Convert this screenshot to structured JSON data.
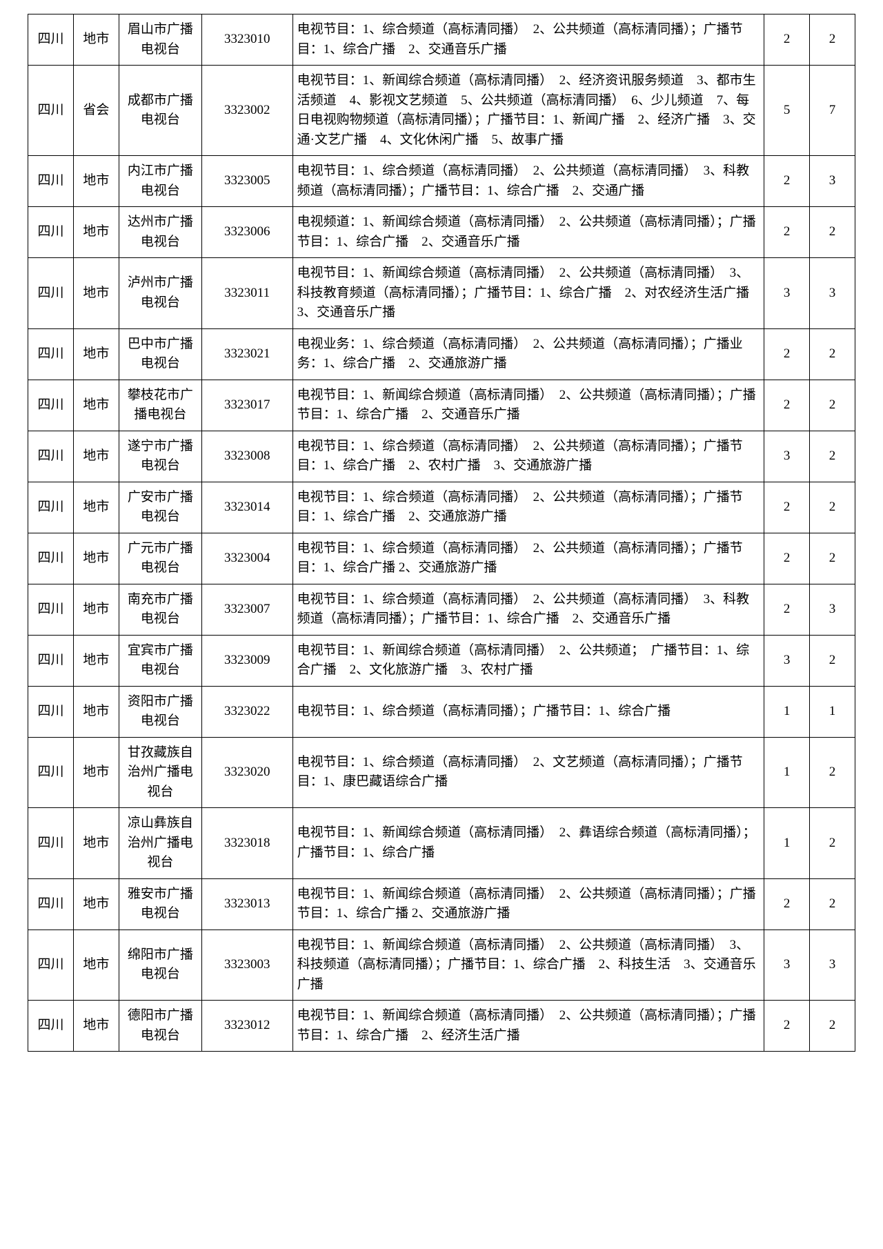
{
  "table": {
    "border_color": "#000000",
    "background_color": "#ffffff",
    "text_color": "#000000",
    "font_size": 19,
    "font_family": "SimSun",
    "columns": [
      {
        "key": "province",
        "width": "5.5%",
        "align": "center"
      },
      {
        "key": "level",
        "width": "5.5%",
        "align": "center"
      },
      {
        "key": "station",
        "width": "10%",
        "align": "center"
      },
      {
        "key": "code",
        "width": "11%",
        "align": "center"
      },
      {
        "key": "desc",
        "width": "57%",
        "align": "left"
      },
      {
        "key": "num1",
        "width": "5.5%",
        "align": "center"
      },
      {
        "key": "num2",
        "width": "5.5%",
        "align": "center"
      }
    ],
    "rows": [
      {
        "province": "四川",
        "level": "地市",
        "station": "眉山市广播电视台",
        "code": "3323010",
        "desc": "电视节目：1、综合频道（高标清同播）　2、公共频道（高标清同播）；广播节目：1、综合广播　2、交通音乐广播",
        "num1": "2",
        "num2": "2"
      },
      {
        "province": "四川",
        "level": "省会",
        "station": "成都市广播电视台",
        "code": "3323002",
        "desc": "电视节目：1、新闻综合频道（高标清同播）　2、经济资讯服务频道　3、都市生活频道　4、影视文艺频道　5、公共频道（高标清同播）　6、少儿频道　7、每日电视购物频道（高标清同播）；广播节目：1、新闻广播　2、经济广播　3、交通·文艺广播　4、文化休闲广播　5、故事广播",
        "num1": "5",
        "num2": "7"
      },
      {
        "province": "四川",
        "level": "地市",
        "station": "内江市广播电视台",
        "code": "3323005",
        "desc": "电视节目：1、综合频道（高标清同播）　2、公共频道（高标清同播）　3、科教频道（高标清同播）；广播节目：1、综合广播　2、交通广播",
        "num1": "2",
        "num2": "3"
      },
      {
        "province": "四川",
        "level": "地市",
        "station": "达州市广播电视台",
        "code": "3323006",
        "desc": "电视频道：1、新闻综合频道（高标清同播）　2、公共频道（高标清同播）；广播节目：1、综合广播　2、交通音乐广播",
        "num1": "2",
        "num2": "2"
      },
      {
        "province": "四川",
        "level": "地市",
        "station": "泸州市广播电视台",
        "code": "3323011",
        "desc": "电视节目：1、新闻综合频道（高标清同播）　2、公共频道（高标清同播）　3、科技教育频道（高标清同播）；广播节目：1、综合广播　2、对农经济生活广播　3、交通音乐广播",
        "num1": "3",
        "num2": "3"
      },
      {
        "province": "四川",
        "level": "地市",
        "station": "巴中市广播电视台",
        "code": "3323021",
        "desc": "电视业务：1、综合频道（高标清同播）　2、公共频道（高标清同播）；广播业务：1、综合广播　2、交通旅游广播",
        "num1": "2",
        "num2": "2"
      },
      {
        "province": "四川",
        "level": "地市",
        "station": "攀枝花市广播电视台",
        "code": "3323017",
        "desc": "电视节目：1、新闻综合频道（高标清同播）　2、公共频道（高标清同播）；广播节目：1、综合广播　2、交通音乐广播",
        "num1": "2",
        "num2": "2"
      },
      {
        "province": "四川",
        "level": "地市",
        "station": "遂宁市广播电视台",
        "code": "3323008",
        "desc": "电视节目：1、综合频道（高标清同播）　2、公共频道（高标清同播）；广播节目：1、综合广播　2、农村广播　3、交通旅游广播",
        "num1": "3",
        "num2": "2"
      },
      {
        "province": "四川",
        "level": "地市",
        "station": "广安市广播电视台",
        "code": "3323014",
        "desc": "电视节目：1、综合频道（高标清同播）　2、公共频道（高标清同播）；广播节目：1、综合广播　2、交通旅游广播",
        "num1": "2",
        "num2": "2"
      },
      {
        "province": "四川",
        "level": "地市",
        "station": "广元市广播电视台",
        "code": "3323004",
        "desc": "电视节目：1、综合频道（高标清同播）　2、公共频道（高标清同播）；广播节目：1、综合广播 2、交通旅游广播",
        "num1": "2",
        "num2": "2"
      },
      {
        "province": "四川",
        "level": "地市",
        "station": "南充市广播电视台",
        "code": "3323007",
        "desc": "电视节目：1、综合频道（高标清同播）　2、公共频道（高标清同播）　3、科教频道（高标清同播）；广播节目：1、综合广播　2、交通音乐广播",
        "num1": "2",
        "num2": "3"
      },
      {
        "province": "四川",
        "level": "地市",
        "station": "宜宾市广播电视台",
        "code": "3323009",
        "desc": "电视节目：1、新闻综合频道（高标清同播）　2、公共频道；　广播节目：1、综合广播　2、文化旅游广播　3、农村广播",
        "num1": "3",
        "num2": "2"
      },
      {
        "province": "四川",
        "level": "地市",
        "station": "资阳市广播电视台",
        "code": "3323022",
        "desc": "电视节目：1、综合频道（高标清同播）；广播节目：1、综合广播",
        "num1": "1",
        "num2": "1"
      },
      {
        "province": "四川",
        "level": "地市",
        "station": "甘孜藏族自治州广播电视台",
        "code": "3323020",
        "desc": "电视节目：1、综合频道（高标清同播）　2、文艺频道（高标清同播）；广播节目：1、康巴藏语综合广播",
        "num1": "1",
        "num2": "2"
      },
      {
        "province": "四川",
        "level": "地市",
        "station": "凉山彝族自治州广播电视台",
        "code": "3323018",
        "desc": "电视节目：1、新闻综合频道（高标清同播）　2、彝语综合频道（高标清同播）；广播节目：1、综合广播",
        "num1": "1",
        "num2": "2"
      },
      {
        "province": "四川",
        "level": "地市",
        "station": "雅安市广播电视台",
        "code": "3323013",
        "desc": "电视节目：1、新闻综合频道（高标清同播）　2、公共频道（高标清同播）；广播节目：1、综合广播 2、交通旅游广播",
        "num1": "2",
        "num2": "2"
      },
      {
        "province": "四川",
        "level": "地市",
        "station": "绵阳市广播电视台",
        "code": "3323003",
        "desc": "电视节目：1、新闻综合频道（高标清同播）　2、公共频道（高标清同播）　3、科技频道（高标清同播）；广播节目：1、综合广播　2、科技生活　3、交通音乐广播",
        "num1": "3",
        "num2": "3"
      },
      {
        "province": "四川",
        "level": "地市",
        "station": "德阳市广播电视台",
        "code": "3323012",
        "desc": "电视节目：1、新闻综合频道（高标清同播）　2、公共频道（高标清同播）；广播节目：1、综合广播　2、经济生活广播",
        "num1": "2",
        "num2": "2"
      }
    ]
  }
}
